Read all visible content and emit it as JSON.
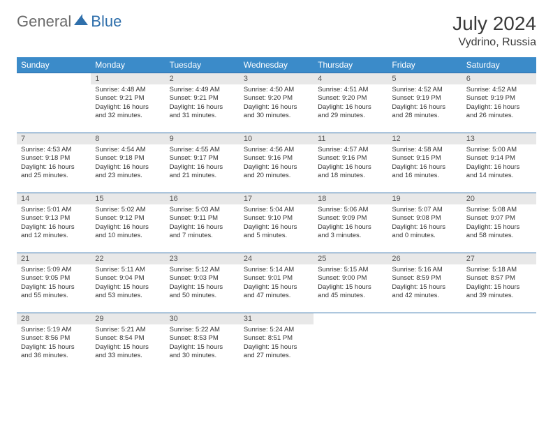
{
  "logo": {
    "part1": "General",
    "part2": "Blue"
  },
  "title": "July 2024",
  "location": "Vydrino, Russia",
  "header_bg": "#3b8bc9",
  "daynum_bg": "#e8e8e8",
  "border_color": "#2f6fab",
  "weekdays": [
    "Sunday",
    "Monday",
    "Tuesday",
    "Wednesday",
    "Thursday",
    "Friday",
    "Saturday"
  ],
  "weeks": [
    [
      null,
      {
        "n": "1",
        "sr": "4:48 AM",
        "ss": "9:21 PM",
        "dl": "16 hours and 32 minutes."
      },
      {
        "n": "2",
        "sr": "4:49 AM",
        "ss": "9:21 PM",
        "dl": "16 hours and 31 minutes."
      },
      {
        "n": "3",
        "sr": "4:50 AM",
        "ss": "9:20 PM",
        "dl": "16 hours and 30 minutes."
      },
      {
        "n": "4",
        "sr": "4:51 AM",
        "ss": "9:20 PM",
        "dl": "16 hours and 29 minutes."
      },
      {
        "n": "5",
        "sr": "4:52 AM",
        "ss": "9:19 PM",
        "dl": "16 hours and 28 minutes."
      },
      {
        "n": "6",
        "sr": "4:52 AM",
        "ss": "9:19 PM",
        "dl": "16 hours and 26 minutes."
      }
    ],
    [
      {
        "n": "7",
        "sr": "4:53 AM",
        "ss": "9:18 PM",
        "dl": "16 hours and 25 minutes."
      },
      {
        "n": "8",
        "sr": "4:54 AM",
        "ss": "9:18 PM",
        "dl": "16 hours and 23 minutes."
      },
      {
        "n": "9",
        "sr": "4:55 AM",
        "ss": "9:17 PM",
        "dl": "16 hours and 21 minutes."
      },
      {
        "n": "10",
        "sr": "4:56 AM",
        "ss": "9:16 PM",
        "dl": "16 hours and 20 minutes."
      },
      {
        "n": "11",
        "sr": "4:57 AM",
        "ss": "9:16 PM",
        "dl": "16 hours and 18 minutes."
      },
      {
        "n": "12",
        "sr": "4:58 AM",
        "ss": "9:15 PM",
        "dl": "16 hours and 16 minutes."
      },
      {
        "n": "13",
        "sr": "5:00 AM",
        "ss": "9:14 PM",
        "dl": "16 hours and 14 minutes."
      }
    ],
    [
      {
        "n": "14",
        "sr": "5:01 AM",
        "ss": "9:13 PM",
        "dl": "16 hours and 12 minutes."
      },
      {
        "n": "15",
        "sr": "5:02 AM",
        "ss": "9:12 PM",
        "dl": "16 hours and 10 minutes."
      },
      {
        "n": "16",
        "sr": "5:03 AM",
        "ss": "9:11 PM",
        "dl": "16 hours and 7 minutes."
      },
      {
        "n": "17",
        "sr": "5:04 AM",
        "ss": "9:10 PM",
        "dl": "16 hours and 5 minutes."
      },
      {
        "n": "18",
        "sr": "5:06 AM",
        "ss": "9:09 PM",
        "dl": "16 hours and 3 minutes."
      },
      {
        "n": "19",
        "sr": "5:07 AM",
        "ss": "9:08 PM",
        "dl": "16 hours and 0 minutes."
      },
      {
        "n": "20",
        "sr": "5:08 AM",
        "ss": "9:07 PM",
        "dl": "15 hours and 58 minutes."
      }
    ],
    [
      {
        "n": "21",
        "sr": "5:09 AM",
        "ss": "9:05 PM",
        "dl": "15 hours and 55 minutes."
      },
      {
        "n": "22",
        "sr": "5:11 AM",
        "ss": "9:04 PM",
        "dl": "15 hours and 53 minutes."
      },
      {
        "n": "23",
        "sr": "5:12 AM",
        "ss": "9:03 PM",
        "dl": "15 hours and 50 minutes."
      },
      {
        "n": "24",
        "sr": "5:14 AM",
        "ss": "9:01 PM",
        "dl": "15 hours and 47 minutes."
      },
      {
        "n": "25",
        "sr": "5:15 AM",
        "ss": "9:00 PM",
        "dl": "15 hours and 45 minutes."
      },
      {
        "n": "26",
        "sr": "5:16 AM",
        "ss": "8:59 PM",
        "dl": "15 hours and 42 minutes."
      },
      {
        "n": "27",
        "sr": "5:18 AM",
        "ss": "8:57 PM",
        "dl": "15 hours and 39 minutes."
      }
    ],
    [
      {
        "n": "28",
        "sr": "5:19 AM",
        "ss": "8:56 PM",
        "dl": "15 hours and 36 minutes."
      },
      {
        "n": "29",
        "sr": "5:21 AM",
        "ss": "8:54 PM",
        "dl": "15 hours and 33 minutes."
      },
      {
        "n": "30",
        "sr": "5:22 AM",
        "ss": "8:53 PM",
        "dl": "15 hours and 30 minutes."
      },
      {
        "n": "31",
        "sr": "5:24 AM",
        "ss": "8:51 PM",
        "dl": "15 hours and 27 minutes."
      },
      null,
      null,
      null
    ]
  ],
  "labels": {
    "sunrise": "Sunrise: ",
    "sunset": "Sunset: ",
    "daylight": "Daylight: "
  }
}
